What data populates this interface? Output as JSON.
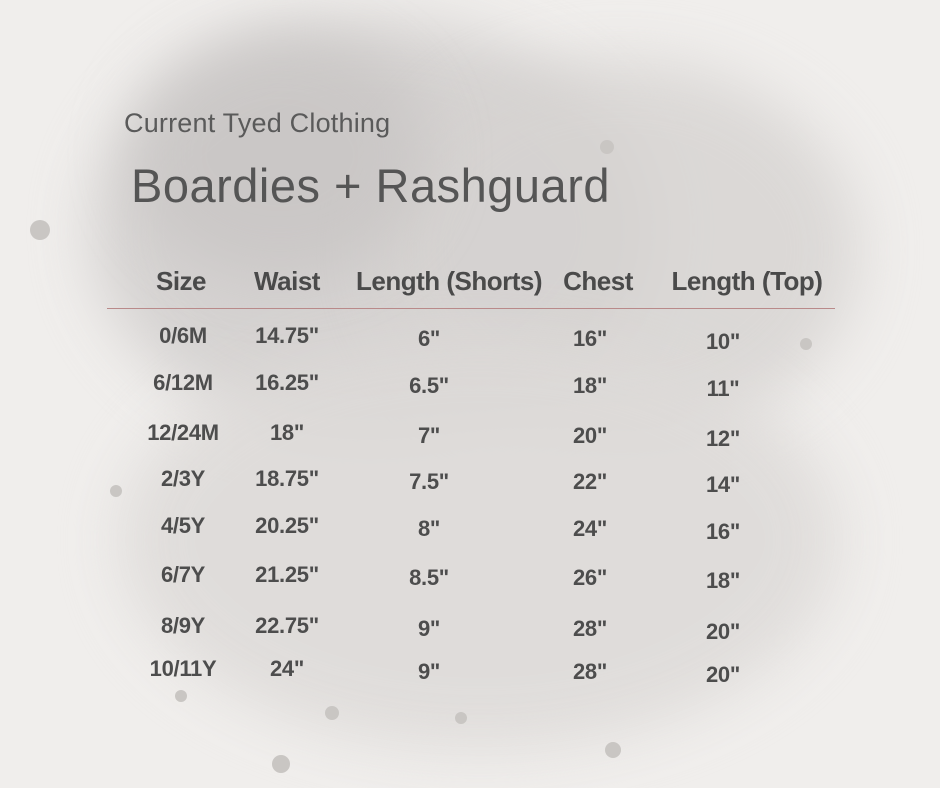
{
  "brand": "Current Tyed Clothing",
  "title": "Boardies + Rashguard",
  "table": {
    "headers": [
      "Size",
      "Waist",
      "Length (Shorts)",
      "Chest",
      "Length (Top)"
    ],
    "rows": [
      [
        "0/6M",
        "14.75\"",
        "6\"",
        "16\"",
        "10\""
      ],
      [
        "6/12M",
        "16.25\"",
        "6.5\"",
        "18\"",
        "11\""
      ],
      [
        "12/24M",
        "18\"",
        "7\"",
        "20\"",
        "12\""
      ],
      [
        "2/3Y",
        "18.75\"",
        "7.5\"",
        "22\"",
        "14\""
      ],
      [
        "4/5Y",
        "20.25\"",
        "8\"",
        "24\"",
        "16\""
      ],
      [
        "6/7Y",
        "21.25\"",
        "8.5\"",
        "26\"",
        "18\""
      ],
      [
        "8/9Y",
        "22.75\"",
        "9\"",
        "28\"",
        "20\""
      ],
      [
        "10/11Y",
        "24\"",
        "9\"",
        "28\"",
        "20\""
      ]
    ]
  },
  "colors": {
    "background": "#f0eeec",
    "rule": "#b98a8a",
    "text": "#4b4b4b"
  }
}
